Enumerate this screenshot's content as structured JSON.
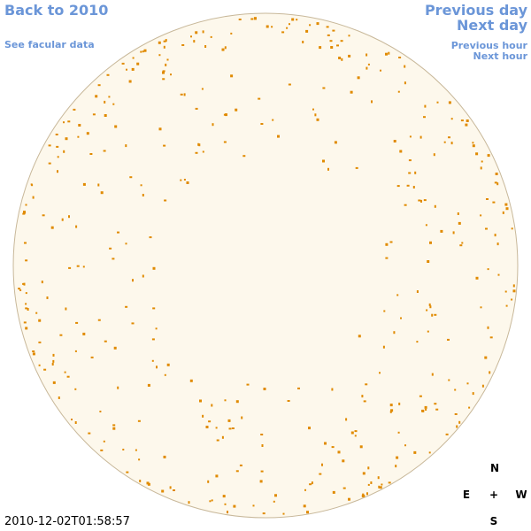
{
  "nav": {
    "back": "Back to 2010",
    "facular": "See facular data",
    "prev_day": "Previous day",
    "next_day": "Next day",
    "prev_hour": "Previous hour",
    "next_hour": "Next hour"
  },
  "timestamp": "2010-12-02T01:58:57",
  "compass": {
    "north": "N",
    "east": "E",
    "center": "+",
    "west": "W",
    "south": "S"
  }
}
